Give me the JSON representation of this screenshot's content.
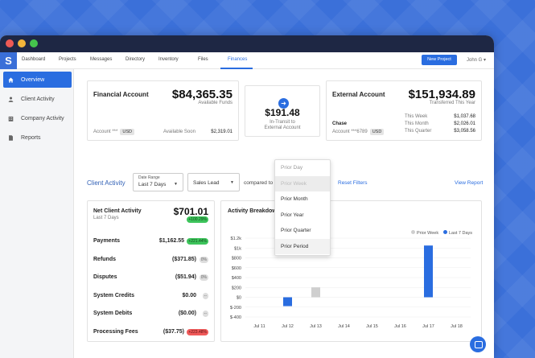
{
  "nav": {
    "logo": "S",
    "items": [
      "Dashboard",
      "Projects",
      "Messages",
      "Directory",
      "Inventory",
      "Files",
      "Finances"
    ],
    "active": "Finances",
    "new_project": "New Project",
    "user": "John G"
  },
  "sidebar": {
    "items": [
      {
        "label": "Overview",
        "icon": "home-icon"
      },
      {
        "label": "Client Activity",
        "icon": "user-icon"
      },
      {
        "label": "Company Activity",
        "icon": "building-icon"
      },
      {
        "label": "Reports",
        "icon": "document-icon"
      }
    ]
  },
  "financial_account": {
    "title": "Financial Account",
    "amount": "$84,365.35",
    "amount_caption": "Available Funds",
    "account": "Account ***",
    "currency": "USD",
    "soon_label": "Available Soon",
    "soon_value": "$2,319.01"
  },
  "in_transit": {
    "amount": "$191.48",
    "line1": "In-Transit to",
    "line2": "External Account"
  },
  "external_account": {
    "title": "External Account",
    "amount": "$151,934.89",
    "amount_caption": "Transferred This Year",
    "bank": "Chase",
    "account": "Account ***6789",
    "currency": "USD",
    "rows": [
      {
        "label": "This Week",
        "value": "$1,037.68"
      },
      {
        "label": "This Month",
        "value": "$2,026.01"
      },
      {
        "label": "This Quarter",
        "value": "$3,058.56"
      }
    ]
  },
  "client_activity": {
    "title": "Client Activity",
    "date_range_caption": "Date Range",
    "date_range": "Last 7 Days",
    "sales_lead": "Sales Lead",
    "compared_to": "compared to",
    "reset": "Reset Filters",
    "view_report": "View Report"
  },
  "compare_menu": [
    "Prior Day",
    "Prior Week",
    "Prior Month",
    "Prior Year",
    "Prior Quarter",
    "Prior Period"
  ],
  "net_activity": {
    "title": "Net Client Activity",
    "subtitle": "Last 7 Days",
    "amount": "$701.01",
    "change": "+100.29%",
    "rows": [
      {
        "label": "Payments",
        "value": "$1,162.55",
        "change": "+221.44%",
        "tone": "g"
      },
      {
        "label": "Refunds",
        "value": "($371.85)",
        "change": "0%",
        "tone": "n"
      },
      {
        "label": "Disputes",
        "value": "($51.94)",
        "change": "0%",
        "tone": "n"
      },
      {
        "label": "System Credits",
        "value": "$0.00",
        "change": "--",
        "tone": "n"
      },
      {
        "label": "System Debits",
        "value": "($0.00)",
        "change": "--",
        "tone": "n"
      },
      {
        "label": "Processing Fees",
        "value": "($37.75)",
        "change": "+223.48%",
        "tone": "r"
      }
    ]
  },
  "chart_title": "Activity Breakdown",
  "chart_data": {
    "type": "bar",
    "categories": [
      "Jul 11",
      "Jul 12",
      "Jul 13",
      "Jul 14",
      "Jul 15",
      "Jul 16",
      "Jul 17",
      "Jul 18"
    ],
    "series": [
      {
        "name": "Prior Week",
        "values": [
          0,
          0,
          200,
          0,
          0,
          0,
          0,
          0
        ],
        "color": "#cfcfcf"
      },
      {
        "name": "Last 7 Days",
        "values": [
          0,
          -180,
          0,
          0,
          0,
          0,
          1050,
          0
        ],
        "color": "#2a6de0"
      }
    ],
    "yticks": [
      "$1.2k",
      "$1k",
      "$800",
      "$600",
      "$400",
      "$200",
      "$0",
      "$-200",
      "$-400"
    ],
    "ylim": [
      -400,
      1200
    ],
    "legend": "top-right"
  }
}
